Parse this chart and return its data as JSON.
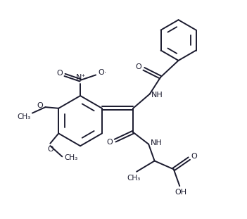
{
  "bg_color": "#ffffff",
  "line_color": "#1a1a2e",
  "line_width": 1.4,
  "figsize": [
    3.51,
    3.11
  ],
  "dpi": 100,
  "xlim": [
    0,
    10
  ],
  "ylim": [
    0,
    9
  ]
}
